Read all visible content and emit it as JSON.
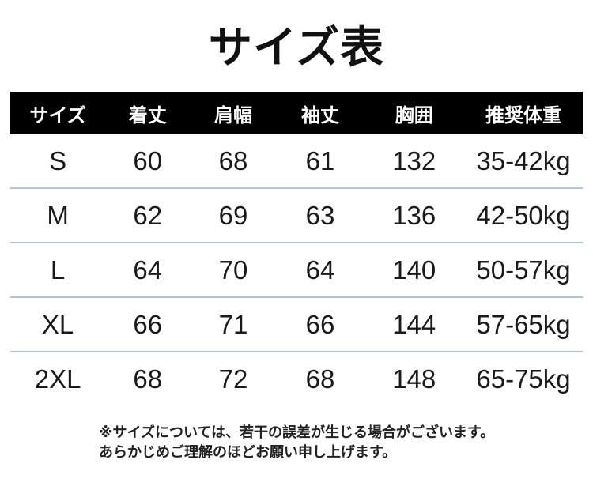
{
  "title": "サイズ表",
  "table": {
    "headers": [
      "サイズ",
      "着丈",
      "肩幅",
      "袖丈",
      "胸囲",
      "推奨体重"
    ],
    "rows": [
      [
        "S",
        "60",
        "68",
        "61",
        "132",
        "35-42kg"
      ],
      [
        "M",
        "62",
        "69",
        "63",
        "136",
        "42-50kg"
      ],
      [
        "L",
        "64",
        "70",
        "64",
        "140",
        "50-57kg"
      ],
      [
        "XL",
        "66",
        "71",
        "66",
        "144",
        "57-65kg"
      ],
      [
        "2XL",
        "68",
        "72",
        "68",
        "148",
        "65-75kg"
      ]
    ]
  },
  "notes": [
    "※サイズについては、若干の誤差が生じる場合がございます。",
    "あらかじめご理解のほどお願い申し上げます。"
  ],
  "colors": {
    "header_bg": "#000000",
    "header_text": "#ffffff",
    "divider": "#b7c1d6",
    "body_text": "#1a1a1a"
  }
}
